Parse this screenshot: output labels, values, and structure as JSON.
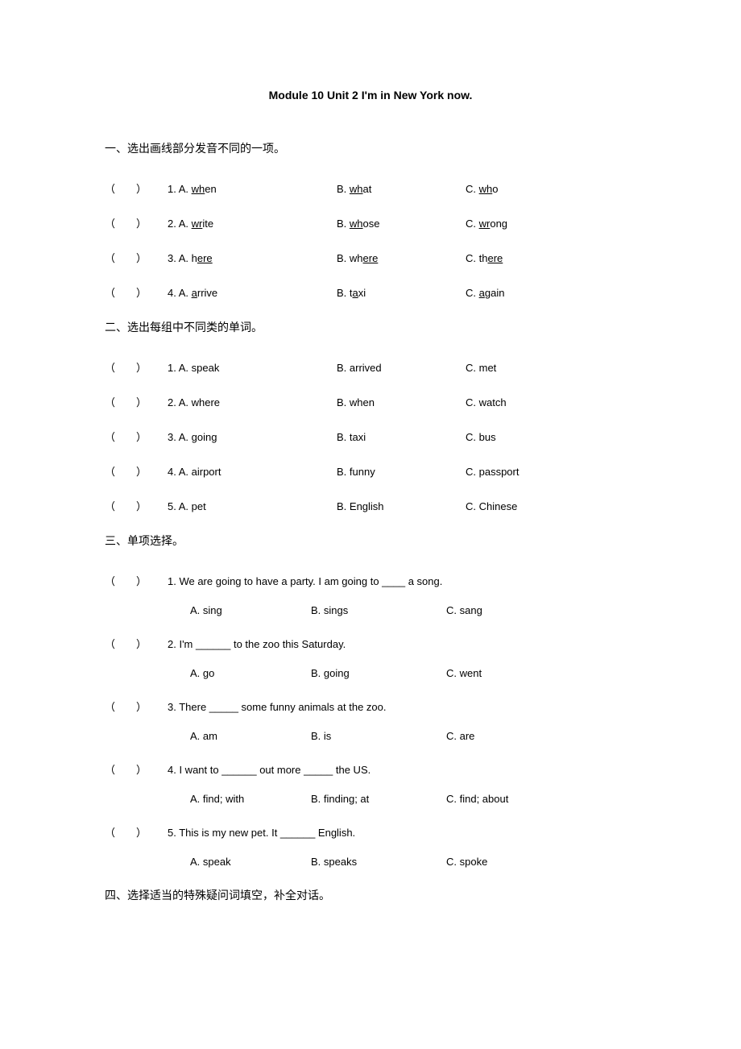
{
  "title": "Module 10 Unit 2 I'm in New York now.",
  "section1": {
    "header": "一、选出画线部分发音不同的一项。",
    "items": [
      {
        "num": "1.",
        "a_pre": "A. ",
        "a_u": "wh",
        "a_post": "en",
        "b_pre": "B. ",
        "b_u": "wh",
        "b_post": "at",
        "c_pre": "C. ",
        "c_u": "wh",
        "c_post": "o"
      },
      {
        "num": "2.",
        "a_pre": "A. ",
        "a_u": "wr",
        "a_post": "ite",
        "b_pre": "B. ",
        "b_u": "wh",
        "b_post": "ose",
        "c_pre": "C. ",
        "c_u": "wr",
        "c_post": "ong"
      },
      {
        "num": "3.",
        "a_pre": "A. h",
        "a_u": "ere",
        "a_post": "",
        "b_pre": "B. wh",
        "b_u": "ere",
        "b_post": "",
        "c_pre": "C. th",
        "c_u": "ere",
        "c_post": ""
      },
      {
        "num": "4.",
        "a_pre": "A. ",
        "a_u": "a",
        "a_post": "rrive",
        "b_pre": "B. t",
        "b_u": "a",
        "b_post": "xi",
        "c_pre": "C. ",
        "c_u": "a",
        "c_post": "gain"
      }
    ]
  },
  "section2": {
    "header": "二、选出每组中不同类的单词。",
    "items": [
      {
        "num": "1.",
        "a": "A. speak",
        "b": "B. arrived",
        "c": "C. met"
      },
      {
        "num": "2.",
        "a": "A. where",
        "b": "B. when",
        "c": "C. watch"
      },
      {
        "num": "3.",
        "a": "A. going",
        "b": "B. taxi",
        "c": "C. bus"
      },
      {
        "num": "4.",
        "a": "A. airport",
        "b": "B. funny",
        "c": "C. passport"
      },
      {
        "num": "5.",
        "a": "A. pet",
        "b": "B. English",
        "c": "C. Chinese"
      }
    ]
  },
  "section3": {
    "header": "三、单项选择。",
    "items": [
      {
        "num": "1.",
        "sentence": "We are going to have a party. I am going to ____  a song.",
        "a": "A. sing",
        "b": "B. sings",
        "c": "C. sang"
      },
      {
        "num": "2.",
        "sentence": "I'm ______  to the zoo this Saturday.",
        "a": "A. go",
        "b": "B. going",
        "c": "C. went"
      },
      {
        "num": "3.",
        "sentence": "There _____  some funny animals at the zoo.",
        "a": "A. am",
        "b": "B. is",
        "c": "C. are"
      },
      {
        "num": "4.",
        "sentence": "I want to ______  out more _____  the US.",
        "a": "A. find; with",
        "b": "B. finding; at",
        "c": "C. find; about"
      },
      {
        "num": "5.",
        "sentence": "This is my new pet. It ______  English.",
        "a": "A. speak",
        "b": "B. speaks",
        "c": "C. spoke"
      }
    ]
  },
  "section4": {
    "header": "四、选择适当的特殊疑问词填空，补全对话。"
  },
  "paren_text": "（　　）"
}
